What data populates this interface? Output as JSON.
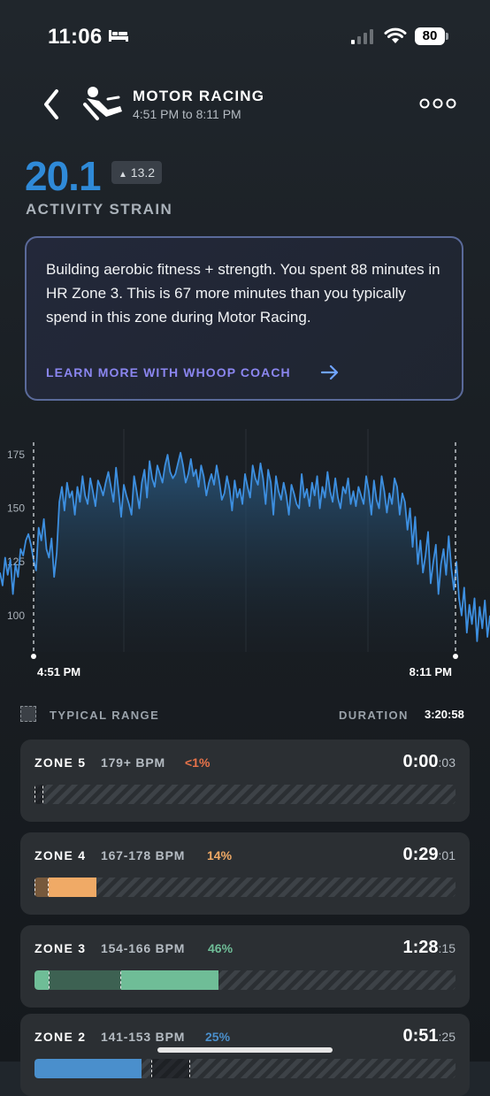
{
  "status": {
    "time": "11:06",
    "battery": "80"
  },
  "header": {
    "title": "MOTOR RACING",
    "time_range": "4:51 PM to 8:11 PM"
  },
  "strain": {
    "value": "20.1",
    "delta": "13.2",
    "label": "ACTIVITY STRAIN"
  },
  "coach": {
    "text": "Building aerobic fitness + strength. You spent 88 minutes in HR Zone 3. This is 67 more minutes than you typically spend in this zone during Motor Racing.",
    "link_label": "LEARN MORE WITH WHOOP COACH"
  },
  "chart": {
    "y_ticks": [
      "175",
      "150",
      "125",
      "100"
    ],
    "start_label": "4:51 PM",
    "end_label": "8:11 PM"
  },
  "legend": {
    "typical_label": "TYPICAL RANGE",
    "duration_label": "DURATION",
    "duration_value": "3:20:58"
  },
  "zones": [
    {
      "name": "ZONE 5",
      "bpm": "179+ BPM",
      "pct": "<1%",
      "time": "0:00",
      "sec": ":03",
      "color": "#e8734a",
      "fill": 0.0
    },
    {
      "name": "ZONE 4",
      "bpm": "167-178 BPM",
      "pct": "14%",
      "time": "0:29",
      "sec": ":01",
      "color": "#f0aa66",
      "fill": 0.147
    },
    {
      "name": "ZONE 3",
      "bpm": "154-166 BPM",
      "pct": "46%",
      "time": "1:28",
      "sec": ":15",
      "color": "#6fbd97",
      "fill": 0.438
    },
    {
      "name": "ZONE 2",
      "bpm": "141-153 BPM",
      "pct": "25%",
      "time": "0:51",
      "sec": ":25",
      "color": "#4a8fcc",
      "fill": 0.255
    }
  ],
  "chart_data": {
    "type": "line",
    "y_ticks": [
      175,
      150,
      125,
      100
    ],
    "ylim": [
      83,
      187
    ],
    "x_labels": [
      "4:51 PM",
      "8:11 PM"
    ],
    "series": [
      {
        "values": [
          120,
          114,
          127,
          119,
          126,
          110,
          124,
          118,
          131,
          128,
          135,
          138,
          133,
          126,
          121,
          141,
          135,
          145,
          131,
          127,
          136,
          118,
          129,
          153,
          160,
          149,
          162,
          155,
          158,
          147,
          160,
          153,
          165,
          156,
          152,
          164,
          158,
          151,
          163,
          160,
          156,
          162,
          167,
          160,
          153,
          169,
          158,
          146,
          161,
          156,
          152,
          147,
          165,
          158,
          150,
          162,
          168,
          155,
          172,
          164,
          160,
          170,
          166,
          162,
          170,
          175,
          167,
          164,
          166,
          171,
          176,
          170,
          162,
          166,
          173,
          165,
          168,
          160,
          170,
          165,
          156,
          162,
          166,
          161,
          170,
          163,
          154,
          157,
          165,
          159,
          149,
          163,
          155,
          159,
          152,
          166,
          160,
          155,
          170,
          164,
          161,
          171,
          164,
          152,
          168,
          162,
          147,
          165,
          158,
          154,
          162,
          156,
          147,
          161,
          157,
          152,
          150,
          166,
          155,
          159,
          151,
          162,
          156,
          165,
          150,
          160,
          155,
          167,
          158,
          153,
          164,
          155,
          150,
          160,
          157,
          164,
          152,
          158,
          151,
          160,
          156,
          152,
          165,
          158,
          147,
          163,
          154,
          150,
          165,
          158,
          148,
          157,
          152,
          164,
          160,
          147,
          157,
          153,
          140,
          150,
          132,
          146,
          124,
          135,
          120,
          128,
          139,
          115,
          125,
          133,
          110,
          124,
          131,
          119,
          137,
          122,
          112,
          125,
          108,
          100,
          113,
          92,
          105,
          96,
          108,
          88,
          104,
          94,
          107,
          90,
          100
        ]
      }
    ]
  }
}
